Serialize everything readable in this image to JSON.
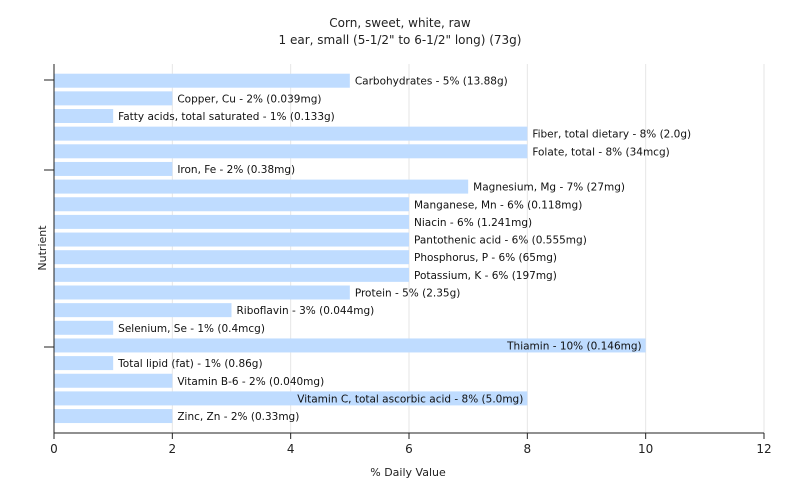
{
  "chart_data": {
    "type": "bar",
    "orientation": "horizontal",
    "title": "Corn, sweet, white, raw",
    "subtitle": "1 ear, small (5-1/2\" to 6-1/2\" long) (73g)",
    "xlabel": "% Daily Value",
    "ylabel": "Nutrient",
    "xlim": [
      0,
      12
    ],
    "xticks": [
      0,
      2,
      4,
      6,
      8,
      10,
      12
    ],
    "grid": true,
    "legend": "none",
    "bar_color": "#bfdcff",
    "categories": [
      "Carbohydrates",
      "Copper, Cu",
      "Fatty acids, total saturated",
      "Fiber, total dietary",
      "Folate, total",
      "Iron, Fe",
      "Magnesium, Mg",
      "Manganese, Mn",
      "Niacin",
      "Pantothenic acid",
      "Phosphorus, P",
      "Potassium, K",
      "Protein",
      "Riboflavin",
      "Selenium, Se",
      "Thiamin",
      "Total lipid (fat)",
      "Vitamin B-6",
      "Vitamin C, total ascorbic acid",
      "Zinc, Zn"
    ],
    "values": [
      5,
      2,
      1,
      8,
      8,
      2,
      7,
      6,
      6,
      6,
      6,
      6,
      5,
      3,
      1,
      10,
      1,
      2,
      8,
      2
    ],
    "labels": [
      "Carbohydrates - 5% (13.88g)",
      "Copper, Cu - 2% (0.039mg)",
      "Fatty acids, total saturated - 1% (0.133g)",
      "Fiber, total dietary - 8% (2.0g)",
      "Folate, total - 8% (34mcg)",
      "Iron, Fe - 2% (0.38mg)",
      "Magnesium, Mg - 7% (27mg)",
      "Manganese, Mn - 6% (0.118mg)",
      "Niacin - 6% (1.241mg)",
      "Pantothenic acid - 6% (0.555mg)",
      "Phosphorus, P - 6% (65mg)",
      "Potassium, K - 6% (197mg)",
      "Protein - 5% (2.35g)",
      "Riboflavin - 3% (0.044mg)",
      "Selenium, Se - 1% (0.4mcg)",
      "Thiamin - 10% (0.146mg)",
      "Total lipid (fat) - 1% (0.86g)",
      "Vitamin B-6 - 2% (0.040mg)",
      "Vitamin C, total ascorbic acid - 8% (5.0mg)",
      "Zinc, Zn - 2% (0.33mg)"
    ]
  }
}
